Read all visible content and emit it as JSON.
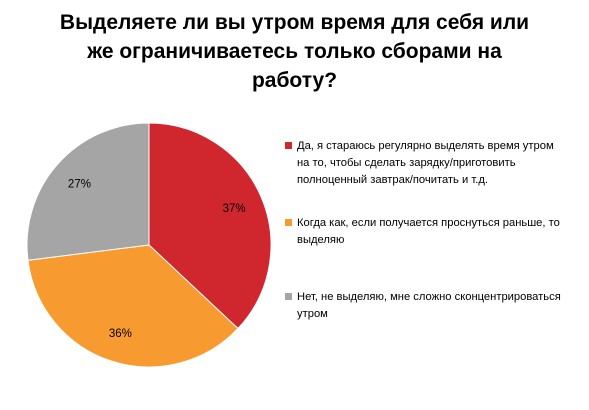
{
  "title_lines": [
    "Выделяете ли вы утром время для себя или",
    "же ограничиваетесь только сборами на",
    "работу?"
  ],
  "chart_data": {
    "type": "pie",
    "title": "Выделяете ли вы утром время для себя или же ограничиваетесь только сборами на работу?",
    "slices": [
      {
        "name": "Да, я стараюсь регулярно выделять время утром на то, чтобы сделать зарядку/приготовить полноценный завтрак/почитать и т.д.",
        "value": 37,
        "label": "37%",
        "color": "#d0262e"
      },
      {
        "name": "Когда как, если получается проснуться раньше, то выделяю",
        "value": 36,
        "label": "36%",
        "color": "#f79a2f"
      },
      {
        "name": "Нет, не выделяю, мне сложно сконцентрироваться утром",
        "value": 27,
        "label": "27%",
        "color": "#a5a5a5"
      }
    ],
    "legend_position": "right"
  }
}
